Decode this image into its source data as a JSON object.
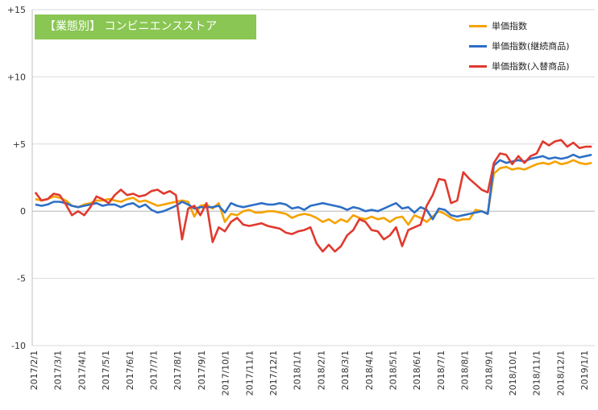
{
  "chart_data": {
    "type": "line",
    "title": "【業態別】 コンビニエンスストア",
    "xlabel": "",
    "ylabel": "",
    "ylim": [
      -10,
      15
    ],
    "yticks": [
      15,
      10,
      5,
      0,
      -5,
      -10
    ],
    "ytick_labels": [
      "+15",
      "+10",
      "+5",
      "0",
      "-5",
      "-10"
    ],
    "grid": "horizontal",
    "legend": "top-right",
    "x_tick_labels": [
      "2017/2/1",
      "2017/3/1",
      "2017/4/1",
      "2017/5/1",
      "2017/6/1",
      "2017/7/1",
      "2017/8/1",
      "2017/9/1",
      "2017/10/1",
      "2017/11/1",
      "2017/12/1",
      "2018/1/1",
      "2018/2/1",
      "2018/3/1",
      "2018/4/1",
      "2018/5/1",
      "2018/6/1",
      "2018/7/1",
      "2018/8/1",
      "2018/9/1",
      "2018/10/1",
      "2018/11/1",
      "2018/12/1",
      "2019/1/1"
    ],
    "series": [
      {
        "name": "単価指数",
        "color": "#f5a200",
        "values": [
          0.9,
          0.8,
          0.9,
          1.1,
          1.0,
          0.8,
          0.4,
          0.3,
          0.5,
          0.6,
          0.8,
          0.8,
          0.9,
          0.8,
          0.7,
          0.9,
          1.0,
          0.7,
          0.8,
          0.6,
          0.4,
          0.5,
          0.6,
          0.7,
          0.8,
          0.7,
          -0.4,
          0.4,
          0.5,
          0.2,
          0.6,
          -0.8,
          -0.2,
          -0.3,
          0.0,
          0.1,
          -0.1,
          -0.1,
          0.0,
          0.0,
          -0.1,
          -0.2,
          -0.5,
          -0.3,
          -0.2,
          -0.3,
          -0.5,
          -0.8,
          -0.6,
          -0.9,
          -0.6,
          -0.8,
          -0.3,
          -0.5,
          -0.6,
          -0.4,
          -0.6,
          -0.5,
          -0.8,
          -0.5,
          -0.4,
          -1.0,
          -0.3,
          -0.5,
          -0.8,
          -0.4,
          0.0,
          -0.2,
          -0.5,
          -0.7,
          -0.6,
          -0.6,
          0.1,
          0.0,
          -0.2,
          2.8,
          3.2,
          3.3,
          3.1,
          3.2,
          3.1,
          3.3,
          3.5,
          3.6,
          3.5,
          3.7,
          3.5,
          3.6,
          3.8,
          3.6,
          3.5,
          3.6
        ]
      },
      {
        "name": "単価指数(継続商品)",
        "color": "#2e6fc6",
        "values": [
          0.5,
          0.4,
          0.5,
          0.7,
          0.7,
          0.6,
          0.4,
          0.3,
          0.4,
          0.5,
          0.6,
          0.4,
          0.5,
          0.5,
          0.3,
          0.5,
          0.6,
          0.3,
          0.5,
          0.1,
          -0.1,
          0.0,
          0.2,
          0.4,
          0.7,
          0.5,
          0.2,
          0.3,
          0.3,
          0.3,
          0.4,
          -0.1,
          0.6,
          0.4,
          0.3,
          0.4,
          0.5,
          0.6,
          0.5,
          0.5,
          0.6,
          0.5,
          0.2,
          0.3,
          0.1,
          0.4,
          0.5,
          0.6,
          0.5,
          0.4,
          0.3,
          0.1,
          0.3,
          0.2,
          0.0,
          0.1,
          0.0,
          0.2,
          0.4,
          0.6,
          0.2,
          0.3,
          -0.1,
          0.3,
          0.1,
          -0.6,
          0.2,
          0.1,
          -0.3,
          -0.4,
          -0.3,
          -0.2,
          -0.1,
          0.0,
          -0.2,
          3.4,
          3.8,
          3.6,
          3.7,
          3.8,
          3.7,
          3.9,
          4.0,
          4.1,
          3.9,
          4.0,
          3.9,
          4.0,
          4.2,
          4.0,
          4.1,
          4.2
        ]
      },
      {
        "name": "単価指数(入替商品)",
        "color": "#e03a2f",
        "values": [
          1.4,
          0.8,
          0.9,
          1.3,
          1.2,
          0.5,
          -0.3,
          0.0,
          -0.3,
          0.3,
          1.1,
          0.9,
          0.6,
          1.2,
          1.6,
          1.2,
          1.3,
          1.1,
          1.2,
          1.5,
          1.6,
          1.3,
          1.5,
          1.2,
          -2.1,
          0.2,
          0.4,
          -0.3,
          0.6,
          -2.3,
          -1.2,
          -1.5,
          -0.8,
          -0.5,
          -1.0,
          -1.1,
          -1.0,
          -0.9,
          -1.1,
          -1.2,
          -1.3,
          -1.6,
          -1.7,
          -1.5,
          -1.4,
          -1.2,
          -2.4,
          -3.0,
          -2.5,
          -3.0,
          -2.6,
          -1.8,
          -1.4,
          -0.6,
          -0.8,
          -1.4,
          -1.5,
          -2.1,
          -1.8,
          -1.2,
          -2.6,
          -1.4,
          -1.2,
          -1.0,
          0.4,
          1.2,
          2.4,
          2.3,
          0.6,
          0.8,
          2.9,
          2.4,
          2.0,
          1.6,
          1.4,
          3.6,
          4.3,
          4.2,
          3.5,
          4.1,
          3.6,
          4.1,
          4.3,
          5.2,
          4.9,
          5.2,
          5.3,
          4.8,
          5.1,
          4.7,
          4.8,
          4.8
        ]
      }
    ]
  }
}
